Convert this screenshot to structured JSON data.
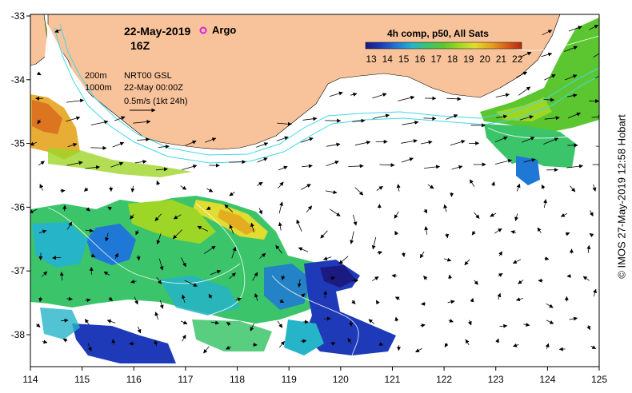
{
  "header": {
    "date": "22-May-2019",
    "hour": "16Z",
    "argo_label": "Argo",
    "argo_color": "#e020e0"
  },
  "legend": {
    "title": "4h comp, p50, All Sats",
    "ticks": [
      "13",
      "14",
      "15",
      "16",
      "17",
      "18",
      "19",
      "20",
      "21",
      "22"
    ]
  },
  "info": {
    "isobath_1": "200m",
    "isobath_2": "1000m",
    "product": "NRT00 GSL",
    "time": "22-May 00:00Z",
    "scale": "0.5m/s (1kt 24h)"
  },
  "credit": "© IMOS 27-May-2019 12:58 Hobart",
  "axes": {
    "x_labels": [
      "114",
      "115",
      "116",
      "117",
      "118",
      "119",
      "120",
      "121",
      "122",
      "123",
      "124",
      "125"
    ],
    "y_labels": [
      "-33",
      "-34",
      "-35",
      "-36",
      "-37",
      "-38"
    ]
  },
  "colors": {
    "land": "#f8c39a",
    "no_data": "#ffffff",
    "isobath": "#40d8e8",
    "vector": "#000000"
  },
  "colormap": [
    "#1a1a80",
    "#1f3ab8",
    "#1f78d6",
    "#26b4c8",
    "#3cc46a",
    "#5cc630",
    "#9ed628",
    "#e0dc30",
    "#e4a41e",
    "#d8621a",
    "#b82814"
  ]
}
